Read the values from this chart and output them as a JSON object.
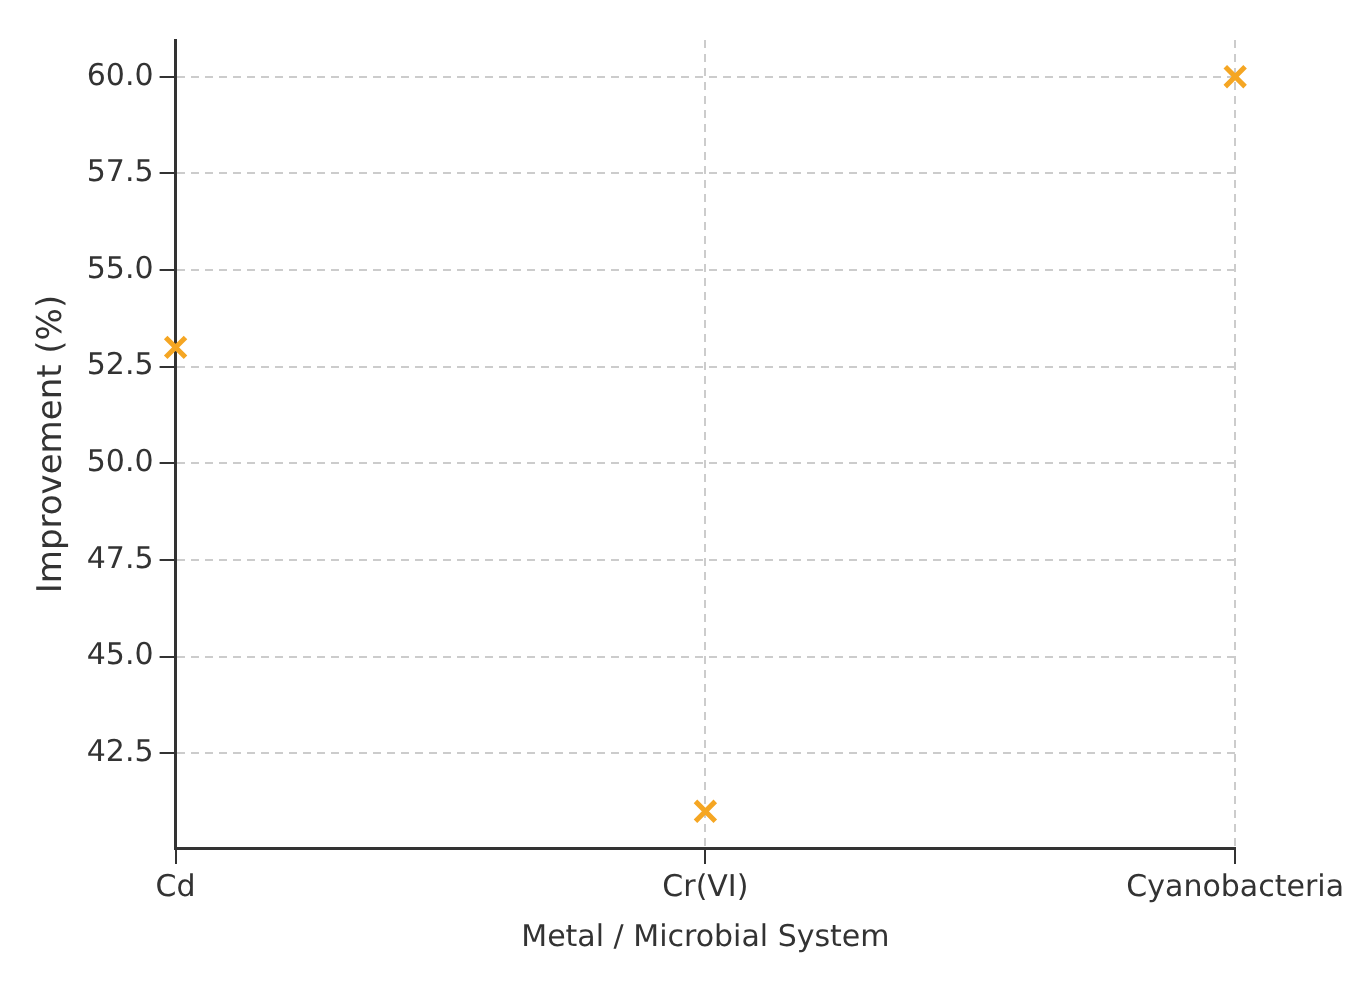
{
  "chart_data": {
    "type": "scatter",
    "xlabel": "Metal / Microbial System",
    "ylabel": "Improvement (%)",
    "categories": [
      "Cd",
      "Cr(VI)",
      "Cyanobacteria"
    ],
    "series": [
      {
        "color": "#f5a623",
        "values": [
          53,
          41,
          60
        ]
      }
    ],
    "marker": "cross",
    "grid": true,
    "legend": false,
    "ylim": [
      40.05,
      60.95
    ],
    "yticks": [
      {
        "value": 42.5,
        "label": "42.5"
      },
      {
        "value": 45,
        "label": "45.0"
      },
      {
        "value": 47.5,
        "label": "47.5"
      },
      {
        "value": 50,
        "label": "50.0"
      },
      {
        "value": 52.5,
        "label": "52.5"
      },
      {
        "value": 55,
        "label": "55.0"
      },
      {
        "value": 57.5,
        "label": "57.5"
      },
      {
        "value": 60,
        "label": "60.0"
      }
    ]
  }
}
